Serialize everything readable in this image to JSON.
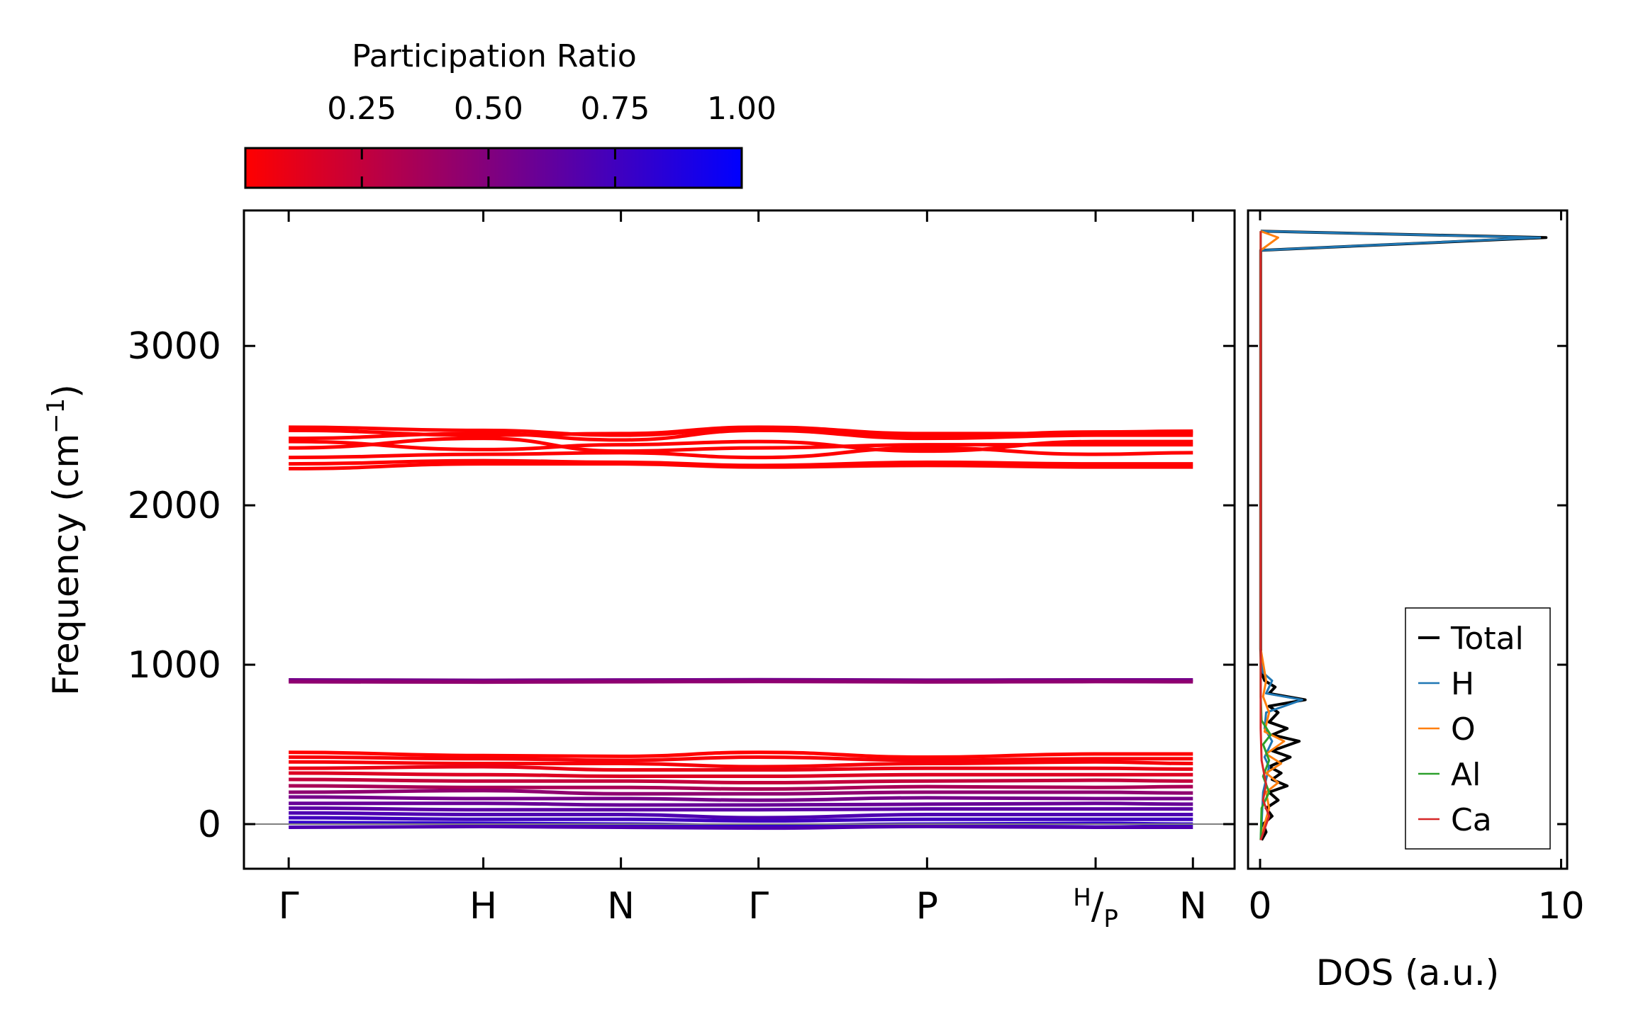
{
  "chart_data": [
    {
      "type": "line",
      "name": "phonon-band-structure",
      "ylabel_main": "Frequency (cm",
      "ylabel_sup": "−1",
      "ylabel_tail": ")",
      "xlabel": "",
      "ylim": [
        -280,
        3850
      ],
      "yticks": [
        0,
        1000,
        2000,
        3000
      ],
      "path": [
        {
          "label": "Γ",
          "pos": 0.0
        },
        {
          "label": "H",
          "pos": 1.0
        },
        {
          "label": "N",
          "pos": 1.707
        },
        {
          "label": "Γ",
          "pos": 2.414
        },
        {
          "label": "P",
          "pos": 3.28
        },
        {
          "label": "H/P",
          "pos": 4.146
        },
        {
          "label": "N",
          "pos": 4.646
        }
      ],
      "path_end_label_sup": "H",
      "path_end_label_sub": "P",
      "x_range": [
        -0.23,
        4.86
      ],
      "zero_line": 0,
      "bands": [
        {
          "name": "high-1",
          "pr": 0.0,
          "values": [
            2490,
            2470,
            2440,
            2480,
            2430,
            2460,
            2465
          ]
        },
        {
          "name": "high-2",
          "pr": 0.0,
          "values": [
            2470,
            2440,
            2450,
            2490,
            2450,
            2450,
            2455
          ]
        },
        {
          "name": "high-3",
          "pr": 0.0,
          "values": [
            2420,
            2450,
            2410,
            2470,
            2420,
            2440,
            2440
          ]
        },
        {
          "name": "high-4",
          "pr": 0.0,
          "values": [
            2400,
            2350,
            2380,
            2400,
            2340,
            2400,
            2400
          ]
        },
        {
          "name": "high-5",
          "pr": 0.0,
          "values": [
            2360,
            2420,
            2340,
            2360,
            2380,
            2380,
            2380
          ]
        },
        {
          "name": "high-6",
          "pr": 0.0,
          "values": [
            2300,
            2320,
            2330,
            2300,
            2360,
            2320,
            2330
          ]
        },
        {
          "name": "high-7",
          "pr": 0.0,
          "values": [
            2260,
            2280,
            2270,
            2250,
            2270,
            2260,
            2260
          ]
        },
        {
          "name": "high-8",
          "pr": 0.0,
          "values": [
            2230,
            2260,
            2260,
            2240,
            2250,
            2240,
            2240
          ]
        },
        {
          "name": "mid-1",
          "pr": 0.55,
          "values": [
            905,
            902,
            904,
            906,
            903,
            905,
            905
          ]
        },
        {
          "name": "mid-2",
          "pr": 0.45,
          "values": [
            893,
            891,
            893,
            895,
            892,
            894,
            893
          ]
        },
        {
          "name": "low-1",
          "pr": 0.0,
          "values": [
            450,
            430,
            425,
            450,
            420,
            440,
            440
          ]
        },
        {
          "name": "low-2",
          "pr": 0.05,
          "values": [
            420,
            410,
            400,
            420,
            400,
            410,
            410
          ]
        },
        {
          "name": "low-3",
          "pr": 0.05,
          "values": [
            390,
            380,
            380,
            360,
            380,
            390,
            380
          ]
        },
        {
          "name": "low-4",
          "pr": 0.1,
          "values": [
            350,
            360,
            340,
            340,
            350,
            350,
            345
          ]
        },
        {
          "name": "low-5",
          "pr": 0.15,
          "values": [
            320,
            310,
            300,
            300,
            310,
            310,
            310
          ]
        },
        {
          "name": "low-6",
          "pr": 0.25,
          "values": [
            280,
            270,
            270,
            260,
            270,
            275,
            270
          ]
        },
        {
          "name": "low-7",
          "pr": 0.35,
          "values": [
            240,
            230,
            230,
            220,
            235,
            230,
            235
          ]
        },
        {
          "name": "low-8",
          "pr": 0.45,
          "values": [
            200,
            210,
            190,
            190,
            200,
            200,
            195
          ]
        },
        {
          "name": "low-9",
          "pr": 0.55,
          "values": [
            170,
            160,
            160,
            150,
            165,
            160,
            160
          ]
        },
        {
          "name": "low-10",
          "pr": 0.6,
          "values": [
            130,
            130,
            120,
            120,
            125,
            130,
            125
          ]
        },
        {
          "name": "low-11",
          "pr": 0.65,
          "values": [
            100,
            90,
            90,
            90,
            95,
            95,
            95
          ]
        },
        {
          "name": "low-12",
          "pr": 0.7,
          "values": [
            70,
            60,
            60,
            40,
            60,
            60,
            60
          ]
        },
        {
          "name": "low-13",
          "pr": 0.75,
          "values": [
            40,
            30,
            30,
            20,
            30,
            30,
            30
          ]
        },
        {
          "name": "low-14",
          "pr": 0.8,
          "values": [
            10,
            5,
            0,
            -10,
            0,
            5,
            0
          ]
        },
        {
          "name": "low-15",
          "pr": 0.7,
          "values": [
            -20,
            -15,
            -20,
            -25,
            -15,
            -20,
            -20
          ]
        }
      ]
    },
    {
      "type": "line",
      "name": "density-of-states",
      "xlabel": "DOS (a.u.)",
      "xlim": [
        -0.4,
        10.2
      ],
      "xticks": [
        0,
        10
      ],
      "ylim": [
        -280,
        3850
      ],
      "legend_position": "lower-right",
      "series": [
        {
          "name": "Total",
          "color": "#000000",
          "points": [
            [
              0.05,
              -100
            ],
            [
              0.2,
              -50
            ],
            [
              0.1,
              0
            ],
            [
              0.4,
              50
            ],
            [
              0.2,
              100
            ],
            [
              0.6,
              150
            ],
            [
              0.3,
              200
            ],
            [
              0.9,
              240
            ],
            [
              0.4,
              280
            ],
            [
              0.7,
              320
            ],
            [
              0.3,
              360
            ],
            [
              1.0,
              420
            ],
            [
              0.4,
              460
            ],
            [
              1.3,
              520
            ],
            [
              0.4,
              560
            ],
            [
              0.9,
              600
            ],
            [
              0.3,
              640
            ],
            [
              0.6,
              700
            ],
            [
              0.3,
              740
            ],
            [
              1.5,
              780
            ],
            [
              0.3,
              820
            ],
            [
              0.5,
              860
            ],
            [
              0.15,
              900
            ],
            [
              0.05,
              950
            ],
            [
              0.02,
              1100
            ],
            [
              0.02,
              3600
            ],
            [
              9.5,
              3680
            ],
            [
              0.02,
              3720
            ]
          ]
        },
        {
          "name": "H",
          "color": "#1f77b4",
          "points": [
            [
              0.02,
              -100
            ],
            [
              0.05,
              0
            ],
            [
              0.1,
              200
            ],
            [
              0.3,
              360
            ],
            [
              0.15,
              420
            ],
            [
              0.4,
              520
            ],
            [
              0.15,
              600
            ],
            [
              0.2,
              700
            ],
            [
              1.4,
              780
            ],
            [
              0.2,
              820
            ],
            [
              0.4,
              900
            ],
            [
              0.1,
              950
            ],
            [
              0.02,
              1100
            ],
            [
              0.02,
              3600
            ],
            [
              9.3,
              3680
            ],
            [
              0.02,
              3720
            ]
          ]
        },
        {
          "name": "O",
          "color": "#ff7f0e",
          "points": [
            [
              0.02,
              -100
            ],
            [
              0.15,
              0
            ],
            [
              0.3,
              100
            ],
            [
              0.2,
              200
            ],
            [
              0.6,
              260
            ],
            [
              0.2,
              320
            ],
            [
              0.7,
              380
            ],
            [
              0.2,
              440
            ],
            [
              0.8,
              520
            ],
            [
              0.15,
              580
            ],
            [
              0.3,
              700
            ],
            [
              0.1,
              800
            ],
            [
              0.2,
              900
            ],
            [
              0.02,
              1100
            ],
            [
              0.02,
              3600
            ],
            [
              0.6,
              3680
            ],
            [
              0.02,
              3720
            ]
          ]
        },
        {
          "name": "Al",
          "color": "#2ca02c",
          "points": [
            [
              0.02,
              -100
            ],
            [
              0.05,
              100
            ],
            [
              0.3,
              200
            ],
            [
              0.1,
              300
            ],
            [
              0.3,
              400
            ],
            [
              0.1,
              500
            ],
            [
              0.35,
              560
            ],
            [
              0.05,
              650
            ],
            [
              0.02,
              800
            ],
            [
              0.02,
              3720
            ]
          ]
        },
        {
          "name": "Ca",
          "color": "#d62728",
          "points": [
            [
              0.02,
              -100
            ],
            [
              0.3,
              50
            ],
            [
              0.1,
              150
            ],
            [
              0.2,
              250
            ],
            [
              0.05,
              400
            ],
            [
              0.02,
              600
            ],
            [
              0.02,
              3720
            ]
          ]
        }
      ]
    }
  ],
  "colorbar": {
    "title": "Participation Ratio",
    "tick_labels": [
      "0.25",
      "0.50",
      "0.75",
      "1.00"
    ],
    "tick_values": [
      0.25,
      0.5,
      0.75,
      1.0
    ],
    "range": [
      0.02,
      1.0
    ],
    "color_low": "#ff0000",
    "color_high": "#0000ff"
  }
}
